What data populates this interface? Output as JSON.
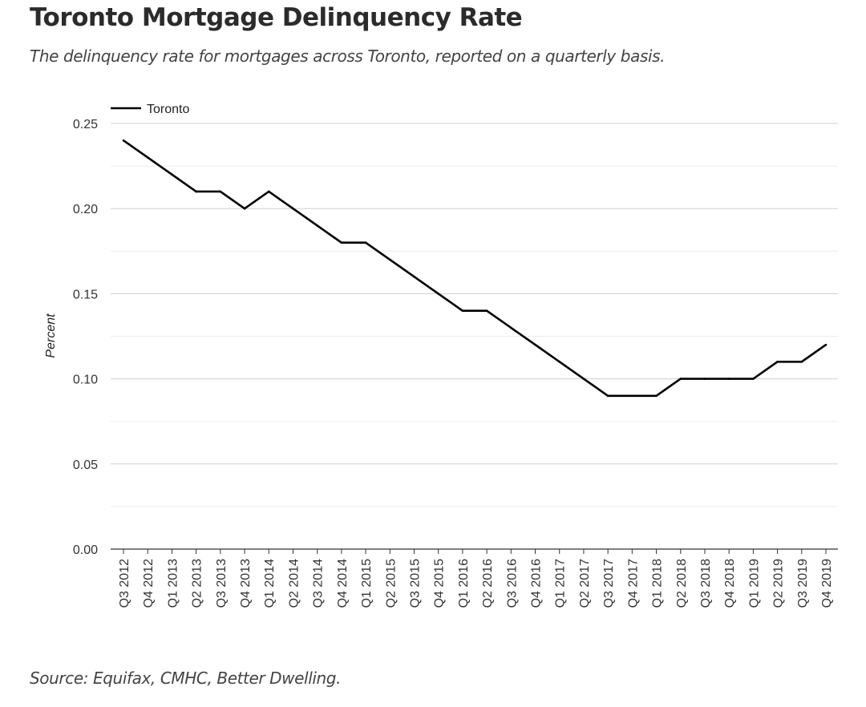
{
  "header": {
    "title": "Toronto Mortgage Delinquency Rate",
    "subtitle": "The delinquency rate for mortgages across Toronto, reported on a quarterly basis."
  },
  "footer": {
    "source": "Source: Equifax, CMHC, Better Dwelling."
  },
  "chart_data": {
    "type": "line",
    "title": "Toronto Mortgage Delinquency Rate",
    "subtitle": "The delinquency rate for mortgages across Toronto, reported on a quarterly basis.",
    "xlabel": "",
    "ylabel": "Percent",
    "ylim": [
      0,
      0.25
    ],
    "yticks": [
      "0.00",
      "0.05",
      "0.10",
      "0.15",
      "0.20",
      "0.25"
    ],
    "grid": true,
    "legend_position": "top-left",
    "line_color": "#000000",
    "categories": [
      "Q3 2012",
      "Q4 2012",
      "Q1 2013",
      "Q2 2013",
      "Q3 2013",
      "Q4 2013",
      "Q1 2014",
      "Q2 2014",
      "Q3 2014",
      "Q4 2014",
      "Q1 2015",
      "Q2 2015",
      "Q3 2015",
      "Q4 2015",
      "Q1 2016",
      "Q2 2016",
      "Q3 2016",
      "Q4 2016",
      "Q1 2017",
      "Q2 2017",
      "Q3 2017",
      "Q4 2017",
      "Q1 2018",
      "Q2 2018",
      "Q3 2018",
      "Q4 2018",
      "Q1 2019",
      "Q2 2019",
      "Q3 2019",
      "Q4 2019"
    ],
    "series": [
      {
        "name": "Toronto",
        "values": [
          0.24,
          0.23,
          0.22,
          0.21,
          0.21,
          0.2,
          0.21,
          0.2,
          0.19,
          0.18,
          0.18,
          0.17,
          0.16,
          0.15,
          0.14,
          0.14,
          0.13,
          0.12,
          0.11,
          0.1,
          0.09,
          0.09,
          0.09,
          0.1,
          0.1,
          0.1,
          0.1,
          0.11,
          0.11,
          0.12
        ]
      }
    ]
  }
}
